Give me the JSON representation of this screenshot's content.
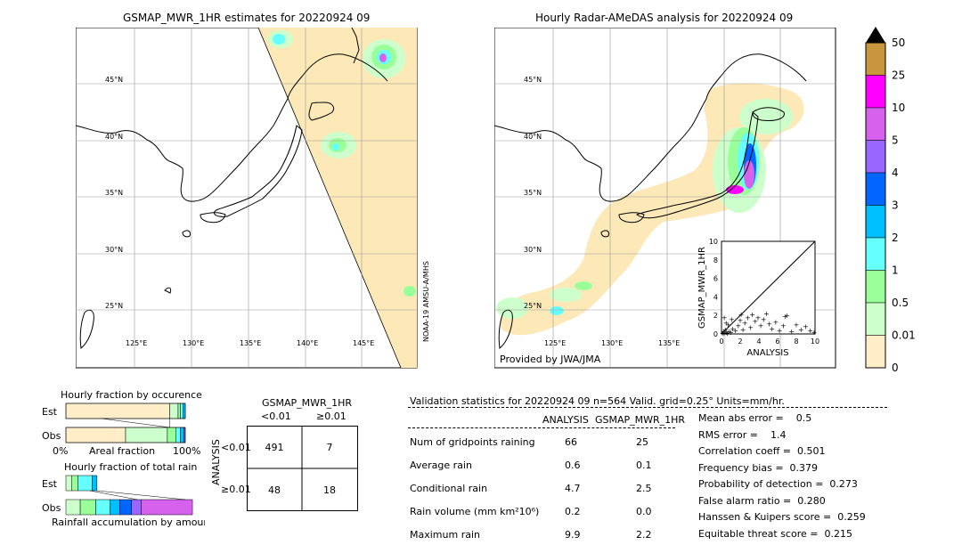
{
  "left_map": {
    "title": "GSMAP_MWR_1HR estimates for 20220924 09",
    "lat_labels": [
      "45°N",
      "40°N",
      "35°N",
      "30°N",
      "25°N"
    ],
    "lon_labels": [
      "125°E",
      "130°E",
      "135°E",
      "140°E",
      "145°E"
    ],
    "side_label": "NOAA-19 AMSU-A/MHS"
  },
  "right_map": {
    "title": "Hourly Radar-AMeDAS analysis for 20220924 09",
    "lat_labels": [
      "45°N",
      "40°N",
      "35°N",
      "30°N",
      "25°N"
    ],
    "lon_labels": [
      "125°E",
      "130°E",
      "135°E"
    ],
    "credit": "Provided by JWA/JMA"
  },
  "colorbar": {
    "labels": [
      "50",
      "25",
      "10",
      "5",
      "4",
      "3",
      "2",
      "1",
      "0.5",
      "0.01",
      "0"
    ],
    "colors": [
      "#c8963c",
      "#ff00ff",
      "#d561ed",
      "#9966ff",
      "#0066ff",
      "#00bfff",
      "#66ffff",
      "#99ff99",
      "#ccffcc",
      "#ffeec8"
    ],
    "overflow_color": "#000000"
  },
  "chart_data": [
    {
      "type": "scatter",
      "name": "inset",
      "xlabel": "ANALYSIS",
      "ylabel": "GSMAP_MWR_1HR",
      "xlim": [
        0,
        10
      ],
      "ylim": [
        0,
        10
      ],
      "xticks": [
        "0",
        "2",
        "4",
        "6",
        "8",
        "10"
      ],
      "yticks": [
        "0",
        "2",
        "4",
        "6",
        "8",
        "10"
      ],
      "points": [
        [
          0.1,
          0.1
        ],
        [
          0.2,
          0.3
        ],
        [
          0.3,
          0.1
        ],
        [
          0.5,
          0.2
        ],
        [
          0.4,
          0.5
        ],
        [
          0.6,
          0.1
        ],
        [
          0.8,
          0.3
        ],
        [
          1,
          0.2
        ],
        [
          1.2,
          0.6
        ],
        [
          0.3,
          1.8
        ],
        [
          0.5,
          1.2
        ],
        [
          0.7,
          1
        ],
        [
          1.5,
          0.4
        ],
        [
          1.8,
          0.9
        ],
        [
          2,
          1.5
        ],
        [
          2.3,
          0.5
        ],
        [
          2.5,
          1.2
        ],
        [
          2.8,
          1.8
        ],
        [
          3.1,
          0.7
        ],
        [
          3.3,
          2.1
        ],
        [
          3.6,
          1.4
        ],
        [
          3.9,
          1.8
        ],
        [
          4.2,
          0.9
        ],
        [
          4.5,
          1.6
        ],
        [
          4.8,
          2.2
        ],
        [
          5.1,
          1.1
        ],
        [
          5.4,
          0.6
        ],
        [
          5.8,
          1.3
        ],
        [
          6.2,
          0.4
        ],
        [
          6.6,
          0.9
        ],
        [
          7,
          2
        ],
        [
          7.5,
          0.3
        ],
        [
          8,
          1
        ],
        [
          8.5,
          0.5
        ],
        [
          9,
          0.8
        ],
        [
          9.5,
          0.4
        ],
        [
          9.9,
          0.2
        ],
        [
          1.1,
          1.6
        ],
        [
          2.1,
          2.1
        ],
        [
          6.8,
          1.9
        ]
      ]
    },
    {
      "type": "bar",
      "name": "Hourly fraction by occurence",
      "title": "Hourly fraction by occurence",
      "categories": [
        "Est",
        "Obs"
      ],
      "xlabel": "Areal fraction",
      "xlim_labels": [
        "0%",
        "100%"
      ],
      "series": [
        {
          "category": "Est",
          "segments": [
            0.87,
            0.07,
            0.02,
            0.02,
            0.02
          ]
        },
        {
          "category": "Obs",
          "segments": [
            0.5,
            0.35,
            0.07,
            0.04,
            0.03,
            0.01
          ]
        }
      ]
    },
    {
      "type": "bar",
      "name": "Hourly fraction of total rain",
      "title": "Hourly fraction of total rain",
      "categories": [
        "Est",
        "Obs"
      ],
      "xlabel": "Rainfall accumulation by amount",
      "series": [
        {
          "category": "Est",
          "segments": [
            0.05,
            0.05,
            0.12,
            0.04
          ]
        },
        {
          "category": "Obs",
          "segments": [
            0.12,
            0.13,
            0.12,
            0.08,
            0.1,
            0.08,
            0.43
          ]
        }
      ]
    },
    {
      "type": "table",
      "name": "contingency",
      "title": "GSMAP_MWR_1HR",
      "col_headers": [
        "<0.01",
        "≥0.01"
      ],
      "row_label": "ANALYSIS",
      "row_headers": [
        "<0.01",
        "≥0.01"
      ],
      "cells": [
        [
          "491",
          "7"
        ],
        [
          "48",
          "18"
        ]
      ]
    },
    {
      "type": "table",
      "name": "validation",
      "title": "Validation statistics for 20220924 09  n=564 Valid. grid=0.25° Units=mm/hr.",
      "col_headers": [
        "ANALYSIS",
        "GSMAP_MWR_1HR"
      ],
      "rows": [
        {
          "label": "Num of gridpoints raining",
          "a": "66",
          "b": "25"
        },
        {
          "label": "Average rain",
          "a": "0.6",
          "b": "0.1"
        },
        {
          "label": "Conditional rain",
          "a": "4.7",
          "b": "2.5"
        },
        {
          "label": "Rain volume (mm km²10⁶)",
          "a": "0.2",
          "b": "0.0"
        },
        {
          "label": "Maximum rain",
          "a": "9.9",
          "b": "2.2"
        }
      ],
      "scores": [
        "Mean abs error =    0.5",
        "RMS error =    1.4",
        "Correlation coeff =  0.501",
        "Frequency bias =  0.379",
        "Probability of detection =  0.273",
        "False alarm ratio =  0.280",
        "Hanssen & Kuipers score =  0.259",
        "Equitable threat score =  0.215"
      ]
    }
  ]
}
